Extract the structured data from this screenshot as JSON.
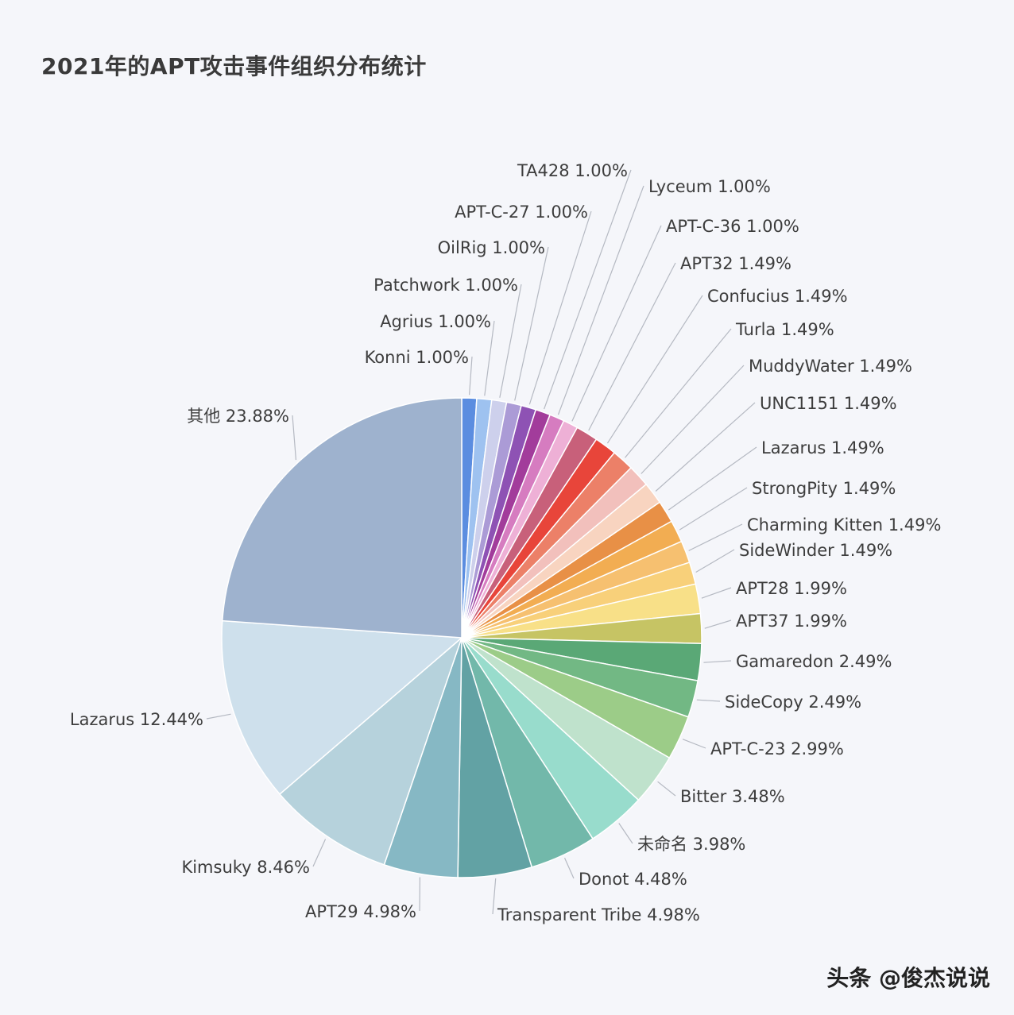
{
  "title": "2021年的APT攻击事件组织分布统计",
  "watermark": "头条 @俊杰说说",
  "chart_data": {
    "type": "pie",
    "start_angle_deg": 0,
    "direction": "clockwise",
    "labels": [
      "Konni",
      "Agrius",
      "Patchwork",
      "OilRig",
      "APT-C-27",
      "TA428",
      "Lyceum",
      "APT-C-36",
      "APT32",
      "Confucius",
      "Turla",
      "MuddyWater",
      "UNC1151",
      "Lazarus",
      "StrongPity",
      "Charming Kitten",
      "SideWinder",
      "APT28",
      "APT37",
      "Gamaredon",
      "SideCopy",
      "APT-C-23",
      "Bitter",
      "未命名",
      "Donot",
      "Transparent Tribe",
      "APT29",
      "Kimsuky",
      "Lazarus",
      "其他"
    ],
    "values": [
      1.0,
      1.0,
      1.0,
      1.0,
      1.0,
      1.0,
      1.0,
      1.0,
      1.49,
      1.49,
      1.49,
      1.49,
      1.49,
      1.49,
      1.49,
      1.49,
      1.49,
      1.99,
      1.99,
      2.49,
      2.49,
      2.99,
      3.48,
      3.98,
      4.48,
      4.98,
      4.98,
      8.46,
      12.44,
      23.88
    ],
    "value_labels": [
      "1.00%",
      "1.00%",
      "1.00%",
      "1.00%",
      "1.00%",
      "1.00%",
      "1.00%",
      "1.00%",
      "1.49%",
      "1.49%",
      "1.49%",
      "1.49%",
      "1.49%",
      "1.49%",
      "1.49%",
      "1.49%",
      "1.49%",
      "1.99%",
      "1.99%",
      "2.49%",
      "2.49%",
      "2.99%",
      "3.48%",
      "3.98%",
      "4.48%",
      "4.98%",
      "4.98%",
      "8.46%",
      "12.44%",
      "23.88%"
    ],
    "colors": [
      "#5b8de0",
      "#9ec2f0",
      "#cdd0ec",
      "#ab9bd6",
      "#8e52b4",
      "#a23c9b",
      "#d67cc0",
      "#eeb0d6",
      "#c8607a",
      "#e8453a",
      "#ec8068",
      "#f2c0bc",
      "#f8d4c0",
      "#e89046",
      "#f2ad52",
      "#f6c070",
      "#f8d07a",
      "#f8e088",
      "#c6c464",
      "#5aa876",
      "#72b884",
      "#9ccc88",
      "#bfe2cc",
      "#98dccc",
      "#72b8aa",
      "#62a2a4",
      "#86b8c4",
      "#b6d2dc",
      "#cee0ec",
      "#9eb2ce"
    ]
  }
}
